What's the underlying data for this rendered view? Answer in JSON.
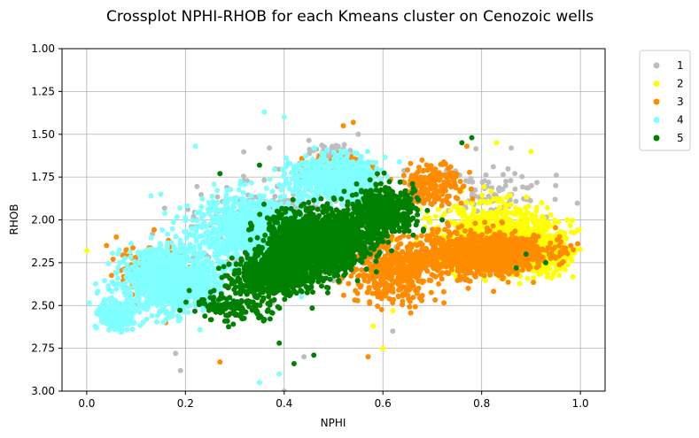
{
  "chart_data": {
    "type": "scatter",
    "title": "Crossplot NPHI-RHOB for each Kmeans cluster on Cenozoic wells",
    "xlabel": "NPHI",
    "ylabel": "RHOB",
    "xlim": [
      -0.05,
      1.05
    ],
    "ylim": [
      3.0,
      1.0
    ],
    "y_inverted": true,
    "xticks": [
      0.0,
      0.2,
      0.4,
      0.6,
      0.8,
      1.0
    ],
    "xtick_labels": [
      "0.0",
      "0.2",
      "0.4",
      "0.6",
      "0.8",
      "1.0"
    ],
    "yticks": [
      1.0,
      1.25,
      1.5,
      1.75,
      2.0,
      2.25,
      2.5,
      2.75,
      3.0
    ],
    "ytick_labels": [
      "1.00",
      "1.25",
      "1.50",
      "1.75",
      "2.00",
      "2.25",
      "2.50",
      "2.75",
      "3.00"
    ],
    "grid": true,
    "legend_position": "outside-right-top",
    "series": [
      {
        "name": "1",
        "color": "#bdbdbd",
        "clusters": [
          {
            "cx": 0.42,
            "cy": 2.05,
            "sx": 0.18,
            "sy": 0.24,
            "n": 420
          },
          {
            "cx": 0.5,
            "cy": 1.62,
            "sx": 0.04,
            "sy": 0.06,
            "n": 70
          },
          {
            "cx": 0.82,
            "cy": 1.85,
            "sx": 0.1,
            "sy": 0.12,
            "n": 90
          }
        ],
        "points": [
          [
            0.19,
            2.88
          ],
          [
            0.18,
            2.78
          ],
          [
            0.44,
            2.8
          ],
          [
            0.62,
            2.65
          ],
          [
            0.4,
            3.0
          ],
          [
            0.86,
            1.58
          ],
          [
            0.55,
            1.5
          ],
          [
            0.37,
            1.58
          ],
          [
            0.95,
            1.8
          ]
        ]
      },
      {
        "name": "2",
        "color": "#ffff00",
        "clusters": [
          {
            "cx": 0.83,
            "cy": 2.1,
            "sx": 0.1,
            "sy": 0.17,
            "n": 950
          },
          {
            "cx": 0.93,
            "cy": 2.2,
            "sx": 0.05,
            "sy": 0.12,
            "n": 300
          }
        ],
        "points": [
          [
            0.0,
            2.18
          ],
          [
            0.6,
            2.75
          ],
          [
            0.62,
            2.53
          ],
          [
            0.58,
            2.62
          ],
          [
            0.83,
            1.55
          ],
          [
            0.9,
            1.6
          ]
        ]
      },
      {
        "name": "3",
        "color": "#ff8c00",
        "clusters": [
          {
            "cx": 0.8,
            "cy": 2.2,
            "sx": 0.12,
            "sy": 0.11,
            "n": 1100
          },
          {
            "cx": 0.62,
            "cy": 2.3,
            "sx": 0.08,
            "sy": 0.16,
            "n": 450
          },
          {
            "cx": 0.5,
            "cy": 1.72,
            "sx": 0.06,
            "sy": 0.08,
            "n": 220
          },
          {
            "cx": 0.7,
            "cy": 1.8,
            "sx": 0.06,
            "sy": 0.1,
            "n": 200
          },
          {
            "cx": 0.13,
            "cy": 2.3,
            "sx": 0.06,
            "sy": 0.15,
            "n": 150
          }
        ],
        "points": [
          [
            0.27,
            2.83
          ],
          [
            0.57,
            2.8
          ],
          [
            0.52,
            1.45
          ],
          [
            0.54,
            1.43
          ],
          [
            0.77,
            1.57
          ],
          [
            0.04,
            2.15
          ],
          [
            0.06,
            2.1
          ],
          [
            0.16,
            2.6
          ]
        ]
      },
      {
        "name": "4",
        "color": "#7fffff",
        "clusters": [
          {
            "cx": 0.17,
            "cy": 2.35,
            "sx": 0.09,
            "sy": 0.16,
            "n": 1200
          },
          {
            "cx": 0.33,
            "cy": 2.05,
            "sx": 0.1,
            "sy": 0.17,
            "n": 900
          },
          {
            "cx": 0.5,
            "cy": 1.75,
            "sx": 0.08,
            "sy": 0.12,
            "n": 600
          },
          {
            "cx": 0.06,
            "cy": 2.55,
            "sx": 0.03,
            "sy": 0.08,
            "n": 220
          }
        ],
        "points": [
          [
            0.36,
            1.37
          ],
          [
            0.4,
            1.4
          ],
          [
            0.35,
            2.95
          ],
          [
            0.39,
            2.9
          ],
          [
            0.22,
            1.57
          ],
          [
            0.15,
            1.85
          ],
          [
            0.13,
            1.86
          ]
        ]
      },
      {
        "name": "5",
        "color": "#008000",
        "clusters": [
          {
            "cx": 0.47,
            "cy": 2.13,
            "sx": 0.09,
            "sy": 0.15,
            "n": 1800
          },
          {
            "cx": 0.38,
            "cy": 2.32,
            "sx": 0.08,
            "sy": 0.1,
            "n": 700
          },
          {
            "cx": 0.6,
            "cy": 1.95,
            "sx": 0.06,
            "sy": 0.12,
            "n": 500
          },
          {
            "cx": 0.3,
            "cy": 2.5,
            "sx": 0.08,
            "sy": 0.08,
            "n": 150
          }
        ],
        "points": [
          [
            0.76,
            1.55
          ],
          [
            0.78,
            1.52
          ],
          [
            0.35,
            1.68
          ],
          [
            0.42,
            2.84
          ],
          [
            0.46,
            2.79
          ],
          [
            0.39,
            2.72
          ],
          [
            0.27,
            1.73
          ],
          [
            0.87,
            2.28
          ],
          [
            0.89,
            2.2
          ],
          [
            0.93,
            2.25
          ],
          [
            0.72,
            2.0
          ]
        ]
      }
    ]
  }
}
